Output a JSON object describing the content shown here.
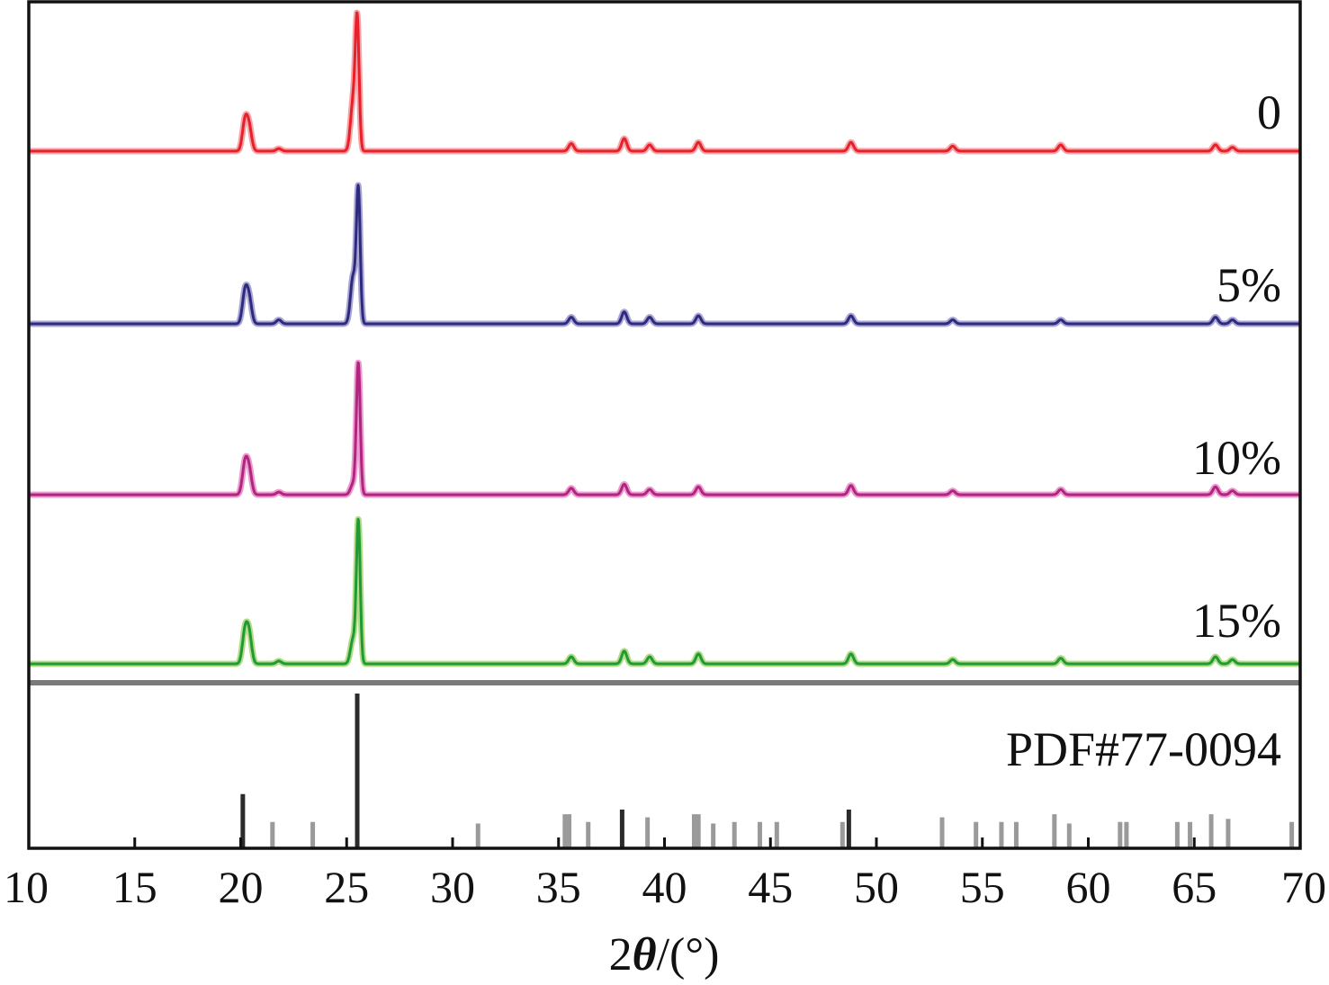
{
  "chart_data": {
    "type": "line",
    "xlabel_main": "2",
    "xlabel_symbol": "θ",
    "xlabel_unit": "/(°)",
    "xlim": [
      10,
      70
    ],
    "xticks": [
      "10",
      "15",
      "20",
      "25",
      "30",
      "35",
      "40",
      "45",
      "50",
      "55",
      "60",
      "65",
      "70"
    ],
    "grid": false,
    "series": [
      {
        "name": "0",
        "color": "#e8202a",
        "glow": "#f6a6aa",
        "peaks": [
          [
            20.2,
            0.23
          ],
          [
            20.4,
            0.18
          ],
          [
            21.8,
            0.02
          ],
          [
            25.3,
            0.38
          ],
          [
            25.5,
            1.0
          ],
          [
            35.6,
            0.06
          ],
          [
            38.1,
            0.1
          ],
          [
            39.3,
            0.05
          ],
          [
            41.6,
            0.07
          ],
          [
            48.8,
            0.07
          ],
          [
            53.6,
            0.04
          ],
          [
            58.7,
            0.05
          ],
          [
            66.0,
            0.05
          ],
          [
            66.8,
            0.03
          ]
        ]
      },
      {
        "name": "5%",
        "color": "#2e2a7c",
        "glow": "#a9a6d6",
        "peaks": [
          [
            20.2,
            0.23
          ],
          [
            20.4,
            0.18
          ],
          [
            21.8,
            0.03
          ],
          [
            25.3,
            0.35
          ],
          [
            25.55,
            1.0
          ],
          [
            35.6,
            0.05
          ],
          [
            38.1,
            0.09
          ],
          [
            39.3,
            0.05
          ],
          [
            41.6,
            0.06
          ],
          [
            48.8,
            0.06
          ],
          [
            53.6,
            0.03
          ],
          [
            58.7,
            0.03
          ],
          [
            66.0,
            0.05
          ],
          [
            66.8,
            0.03
          ]
        ]
      },
      {
        "name": "10%",
        "color": "#b0267f",
        "glow": "#ec9ad0",
        "peaks": [
          [
            20.2,
            0.23
          ],
          [
            20.4,
            0.18
          ],
          [
            21.8,
            0.02
          ],
          [
            25.3,
            0.08
          ],
          [
            25.55,
            1.0
          ],
          [
            35.6,
            0.05
          ],
          [
            38.1,
            0.08
          ],
          [
            39.3,
            0.04
          ],
          [
            41.6,
            0.06
          ],
          [
            48.8,
            0.07
          ],
          [
            53.6,
            0.03
          ],
          [
            58.7,
            0.04
          ],
          [
            66.0,
            0.06
          ],
          [
            66.8,
            0.03
          ]
        ]
      },
      {
        "name": "15%",
        "color": "#1f9a35",
        "glow": "#b4dc88",
        "peaks": [
          [
            20.2,
            0.22
          ],
          [
            20.4,
            0.2
          ],
          [
            21.8,
            0.02
          ],
          [
            25.3,
            0.17
          ],
          [
            25.55,
            1.0
          ],
          [
            35.6,
            0.05
          ],
          [
            38.1,
            0.09
          ],
          [
            39.3,
            0.05
          ],
          [
            41.6,
            0.07
          ],
          [
            48.8,
            0.07
          ],
          [
            53.6,
            0.03
          ],
          [
            58.7,
            0.04
          ],
          [
            66.0,
            0.05
          ],
          [
            66.8,
            0.03
          ]
        ]
      }
    ],
    "reference": {
      "name": "PDF#77-0094",
      "lines": [
        [
          20.1,
          0.35
        ],
        [
          21.5,
          0.17
        ],
        [
          23.4,
          0.17
        ],
        [
          25.5,
          1.0
        ],
        [
          31.2,
          0.16
        ],
        [
          35.3,
          0.22
        ],
        [
          35.5,
          0.22
        ],
        [
          36.4,
          0.17
        ],
        [
          38.0,
          0.25
        ],
        [
          39.2,
          0.2
        ],
        [
          41.4,
          0.22
        ],
        [
          41.6,
          0.22
        ],
        [
          42.3,
          0.16
        ],
        [
          43.3,
          0.17
        ],
        [
          44.5,
          0.17
        ],
        [
          45.3,
          0.17
        ],
        [
          48.4,
          0.17
        ],
        [
          48.7,
          0.25
        ],
        [
          53.1,
          0.2
        ],
        [
          54.7,
          0.17
        ],
        [
          55.9,
          0.17
        ],
        [
          56.6,
          0.17
        ],
        [
          58.4,
          0.22
        ],
        [
          59.1,
          0.16
        ],
        [
          61.5,
          0.17
        ],
        [
          61.8,
          0.17
        ],
        [
          64.2,
          0.17
        ],
        [
          64.8,
          0.17
        ],
        [
          65.8,
          0.22
        ],
        [
          66.6,
          0.19
        ],
        [
          69.6,
          0.17
        ]
      ]
    }
  }
}
